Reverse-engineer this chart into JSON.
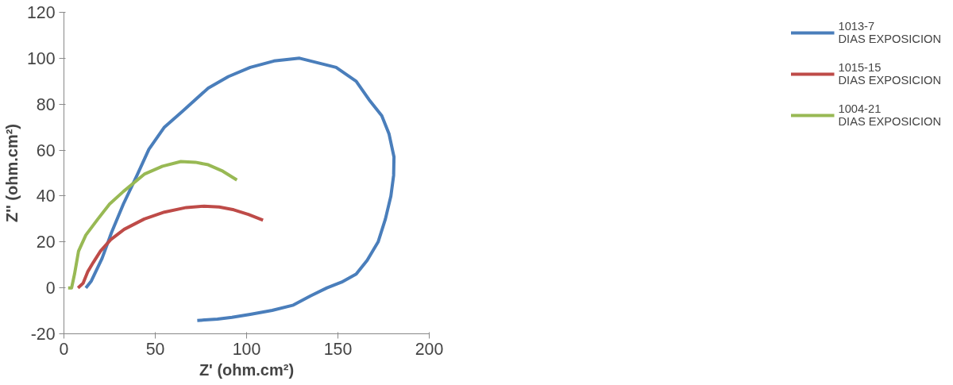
{
  "chart_data": {
    "type": "line",
    "xlabel": "Z' (ohm.cm²)",
    "ylabel": "Z'' (ohm.cm²)",
    "xlim": [
      0,
      200
    ],
    "ylim": [
      -20,
      120
    ],
    "xticks": [
      0,
      50,
      100,
      150,
      200
    ],
    "yticks": [
      -20,
      0,
      20,
      40,
      60,
      80,
      100,
      120
    ],
    "grid": false,
    "legend": "right",
    "marker": "none",
    "line_style": "solid",
    "series": [
      {
        "name": "1013-7 DIAS EXPOSICION",
        "color": "#4a7ebb",
        "x": [
          12,
          15,
          20.9,
          26,
          32.6,
          40,
          46.5,
          55,
          65,
          79,
          90,
          102,
          115,
          129,
          149,
          160,
          167,
          174,
          178,
          180.7,
          180.5,
          179,
          176,
          172,
          166,
          160,
          152,
          144,
          135,
          125.6,
          114,
          102,
          92,
          84,
          73
        ],
        "values": [
          0,
          3,
          12.9,
          24,
          36.6,
          49,
          60.3,
          70,
          77,
          87,
          92,
          96,
          98.8,
          100,
          96,
          90,
          82,
          75,
          67,
          57,
          49,
          40,
          30,
          20,
          12,
          6,
          2.5,
          0,
          -3.5,
          -7.5,
          -9.8,
          -11.5,
          -12.8,
          -13.6,
          -14.2
        ]
      },
      {
        "name": "1015-15 DIAS EXPOSICION",
        "color": "#be4b48",
        "x": [
          7.7,
          10.5,
          13,
          16,
          20,
          25.6,
          33,
          44,
          55,
          67,
          76.7,
          85,
          93,
          101,
          109
        ],
        "values": [
          0,
          2,
          7,
          11,
          16,
          21,
          25.5,
          30,
          33,
          35,
          35.6,
          35.2,
          34,
          32,
          29.5
        ]
      },
      {
        "name": "1004-21 DIAS EXPOSICION",
        "color": "#98b954",
        "x": [
          2.3,
          4.2,
          5.8,
          8,
          12,
          18.6,
          25,
          32.6,
          44,
          54,
          64,
          72,
          79,
          87,
          94.7
        ],
        "values": [
          0,
          0,
          6,
          16,
          23,
          30,
          36.5,
          42,
          49.5,
          53,
          55,
          54.7,
          53.6,
          50.8,
          47
        ]
      }
    ]
  }
}
